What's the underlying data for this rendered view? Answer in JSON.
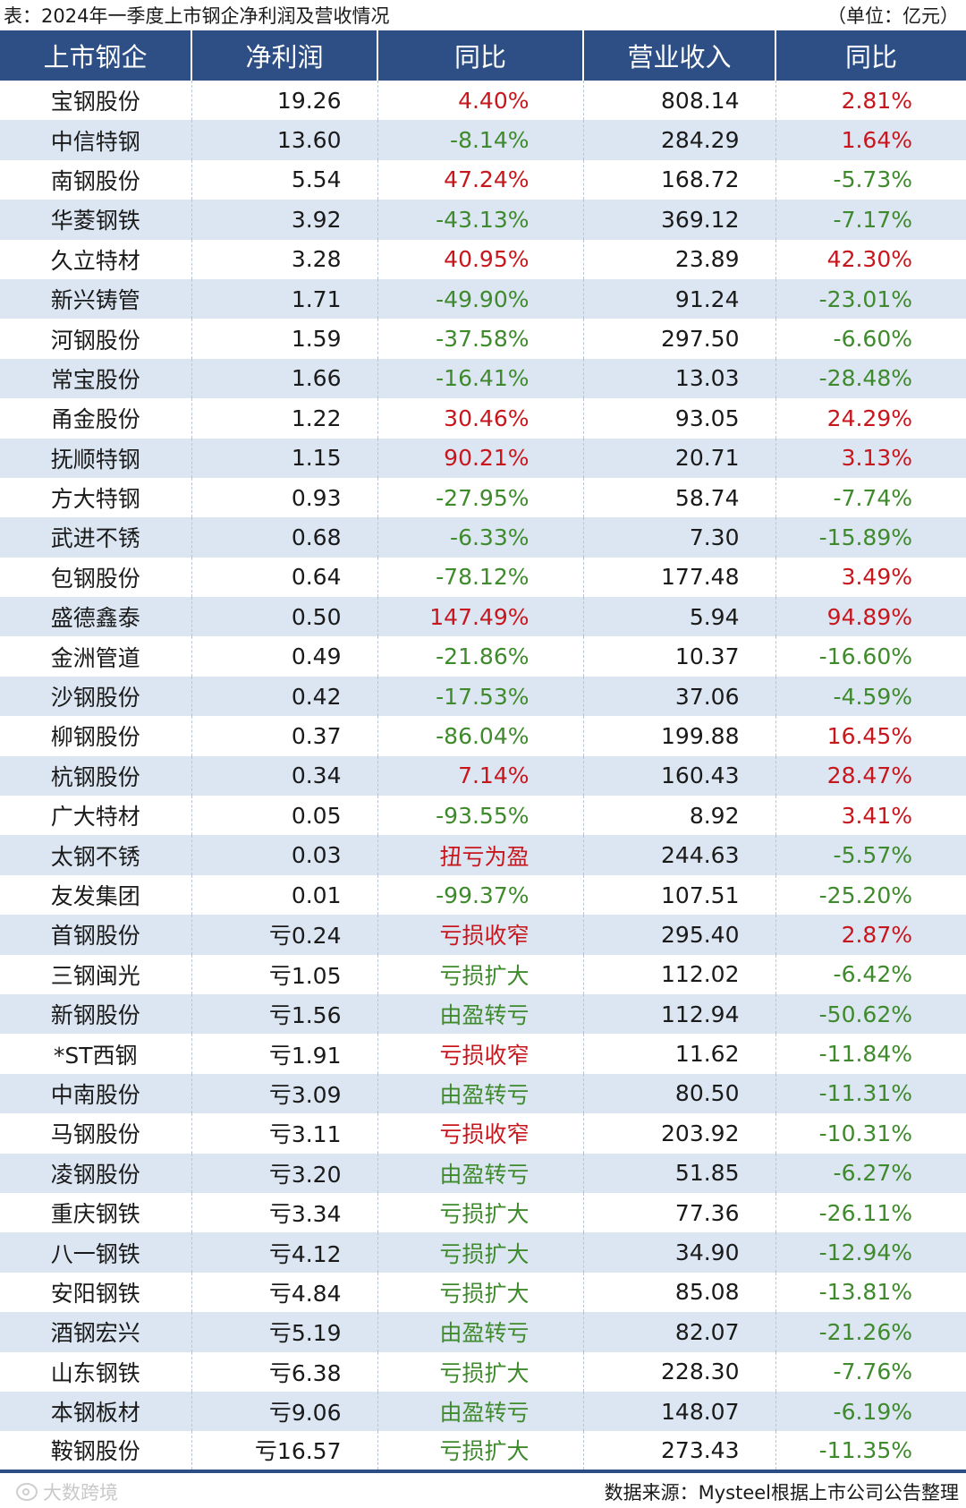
{
  "header": {
    "title": "表：2024年一季度上市钢企净利润及营收情况",
    "unit": "（单位：亿元）"
  },
  "columns": [
    "上市钢企",
    "净利润",
    "同比",
    "营业收入",
    "同比"
  ],
  "rows": [
    {
      "name": "宝钢股份",
      "profit": "19.26",
      "yoy": "4.40%",
      "yoy_dir": "pos",
      "revenue": "808.14",
      "rev_yoy": "2.81%",
      "rev_dir": "pos"
    },
    {
      "name": "中信特钢",
      "profit": "13.60",
      "yoy": "-8.14%",
      "yoy_dir": "neg",
      "revenue": "284.29",
      "rev_yoy": "1.64%",
      "rev_dir": "pos"
    },
    {
      "name": "南钢股份",
      "profit": "5.54",
      "yoy": "47.24%",
      "yoy_dir": "pos",
      "revenue": "168.72",
      "rev_yoy": "-5.73%",
      "rev_dir": "neg"
    },
    {
      "name": "华菱钢铁",
      "profit": "3.92",
      "yoy": "-43.13%",
      "yoy_dir": "neg",
      "revenue": "369.12",
      "rev_yoy": "-7.17%",
      "rev_dir": "neg"
    },
    {
      "name": "久立特材",
      "profit": "3.28",
      "yoy": "40.95%",
      "yoy_dir": "pos",
      "revenue": "23.89",
      "rev_yoy": "42.30%",
      "rev_dir": "pos"
    },
    {
      "name": "新兴铸管",
      "profit": "1.71",
      "yoy": "-49.90%",
      "yoy_dir": "neg",
      "revenue": "91.24",
      "rev_yoy": "-23.01%",
      "rev_dir": "neg"
    },
    {
      "name": "河钢股份",
      "profit": "1.59",
      "yoy": "-37.58%",
      "yoy_dir": "neg",
      "revenue": "297.50",
      "rev_yoy": "-6.60%",
      "rev_dir": "neg"
    },
    {
      "name": "常宝股份",
      "profit": "1.66",
      "yoy": "-16.41%",
      "yoy_dir": "neg",
      "revenue": "13.03",
      "rev_yoy": "-28.48%",
      "rev_dir": "neg"
    },
    {
      "name": "甬金股份",
      "profit": "1.22",
      "yoy": "30.46%",
      "yoy_dir": "pos",
      "revenue": "93.05",
      "rev_yoy": "24.29%",
      "rev_dir": "pos"
    },
    {
      "name": "抚顺特钢",
      "profit": "1.15",
      "yoy": "90.21%",
      "yoy_dir": "pos",
      "revenue": "20.71",
      "rev_yoy": "3.13%",
      "rev_dir": "pos"
    },
    {
      "name": "方大特钢",
      "profit": "0.93",
      "yoy": "-27.95%",
      "yoy_dir": "neg",
      "revenue": "58.74",
      "rev_yoy": "-7.74%",
      "rev_dir": "neg"
    },
    {
      "name": "武进不锈",
      "profit": "0.68",
      "yoy": "-6.33%",
      "yoy_dir": "neg",
      "revenue": "7.30",
      "rev_yoy": "-15.89%",
      "rev_dir": "neg"
    },
    {
      "name": "包钢股份",
      "profit": "0.64",
      "yoy": "-78.12%",
      "yoy_dir": "neg",
      "revenue": "177.48",
      "rev_yoy": "3.49%",
      "rev_dir": "pos"
    },
    {
      "name": "盛德鑫泰",
      "profit": "0.50",
      "yoy": "147.49%",
      "yoy_dir": "pos",
      "revenue": "5.94",
      "rev_yoy": "94.89%",
      "rev_dir": "pos"
    },
    {
      "name": "金洲管道",
      "profit": "0.49",
      "yoy": "-21.86%",
      "yoy_dir": "neg",
      "revenue": "10.37",
      "rev_yoy": "-16.60%",
      "rev_dir": "neg"
    },
    {
      "name": "沙钢股份",
      "profit": "0.42",
      "yoy": "-17.53%",
      "yoy_dir": "neg",
      "revenue": "37.06",
      "rev_yoy": "-4.59%",
      "rev_dir": "neg"
    },
    {
      "name": "柳钢股份",
      "profit": "0.37",
      "yoy": "-86.04%",
      "yoy_dir": "neg",
      "revenue": "199.88",
      "rev_yoy": "16.45%",
      "rev_dir": "pos"
    },
    {
      "name": "杭钢股份",
      "profit": "0.34",
      "yoy": "7.14%",
      "yoy_dir": "pos",
      "revenue": "160.43",
      "rev_yoy": "28.47%",
      "rev_dir": "pos"
    },
    {
      "name": "广大特材",
      "profit": "0.05",
      "yoy": "-93.55%",
      "yoy_dir": "neg",
      "revenue": "8.92",
      "rev_yoy": "3.41%",
      "rev_dir": "pos"
    },
    {
      "name": "太钢不锈",
      "profit": "0.03",
      "yoy": "扭亏为盈",
      "yoy_dir": "pos",
      "revenue": "244.63",
      "rev_yoy": "-5.57%",
      "rev_dir": "neg"
    },
    {
      "name": "友发集团",
      "profit": "0.01",
      "yoy": "-99.37%",
      "yoy_dir": "neg",
      "revenue": "107.51",
      "rev_yoy": "-25.20%",
      "rev_dir": "neg"
    },
    {
      "name": "首钢股份",
      "profit": "亏0.24",
      "yoy": "亏损收窄",
      "yoy_dir": "pos",
      "revenue": "295.40",
      "rev_yoy": "2.87%",
      "rev_dir": "pos"
    },
    {
      "name": "三钢闽光",
      "profit": "亏1.05",
      "yoy": "亏损扩大",
      "yoy_dir": "neg",
      "revenue": "112.02",
      "rev_yoy": "-6.42%",
      "rev_dir": "neg"
    },
    {
      "name": "新钢股份",
      "profit": "亏1.56",
      "yoy": "由盈转亏",
      "yoy_dir": "neg",
      "revenue": "112.94",
      "rev_yoy": "-50.62%",
      "rev_dir": "neg"
    },
    {
      "name": "*ST西钢",
      "profit": "亏1.91",
      "yoy": "亏损收窄",
      "yoy_dir": "pos",
      "revenue": "11.62",
      "rev_yoy": "-11.84%",
      "rev_dir": "neg"
    },
    {
      "name": "中南股份",
      "profit": "亏3.09",
      "yoy": "由盈转亏",
      "yoy_dir": "neg",
      "revenue": "80.50",
      "rev_yoy": "-11.31%",
      "rev_dir": "neg"
    },
    {
      "name": "马钢股份",
      "profit": "亏3.11",
      "yoy": "亏损收窄",
      "yoy_dir": "pos",
      "revenue": "203.92",
      "rev_yoy": "-10.31%",
      "rev_dir": "neg"
    },
    {
      "name": "凌钢股份",
      "profit": "亏3.20",
      "yoy": "由盈转亏",
      "yoy_dir": "neg",
      "revenue": "51.85",
      "rev_yoy": "-6.27%",
      "rev_dir": "neg"
    },
    {
      "name": "重庆钢铁",
      "profit": "亏3.34",
      "yoy": "亏损扩大",
      "yoy_dir": "neg",
      "revenue": "77.36",
      "rev_yoy": "-26.11%",
      "rev_dir": "neg"
    },
    {
      "name": "八一钢铁",
      "profit": "亏4.12",
      "yoy": "亏损扩大",
      "yoy_dir": "neg",
      "revenue": "34.90",
      "rev_yoy": "-12.94%",
      "rev_dir": "neg"
    },
    {
      "name": "安阳钢铁",
      "profit": "亏4.84",
      "yoy": "亏损扩大",
      "yoy_dir": "neg",
      "revenue": "85.08",
      "rev_yoy": "-13.81%",
      "rev_dir": "neg"
    },
    {
      "name": "酒钢宏兴",
      "profit": "亏5.19",
      "yoy": "由盈转亏",
      "yoy_dir": "neg",
      "revenue": "82.07",
      "rev_yoy": "-21.26%",
      "rev_dir": "neg"
    },
    {
      "name": "山东钢铁",
      "profit": "亏6.38",
      "yoy": "亏损扩大",
      "yoy_dir": "neg",
      "revenue": "228.30",
      "rev_yoy": "-7.76%",
      "rev_dir": "neg"
    },
    {
      "name": "本钢板材",
      "profit": "亏9.06",
      "yoy": "由盈转亏",
      "yoy_dir": "neg",
      "revenue": "148.07",
      "rev_yoy": "-6.19%",
      "rev_dir": "neg"
    },
    {
      "name": "鞍钢股份",
      "profit": "亏16.57",
      "yoy": "亏损扩大",
      "yoy_dir": "neg",
      "revenue": "273.43",
      "rev_yoy": "-11.35%",
      "rev_dir": "neg"
    }
  ],
  "footer": {
    "watermark": "大数跨境",
    "source": "数据来源：Mysteel根据上市公司公告整理"
  },
  "colors": {
    "header_bg": "#2d4f86",
    "stripe_bg": "#dce6f2",
    "positive": "#c8161d",
    "negative": "#3e8a2c"
  }
}
